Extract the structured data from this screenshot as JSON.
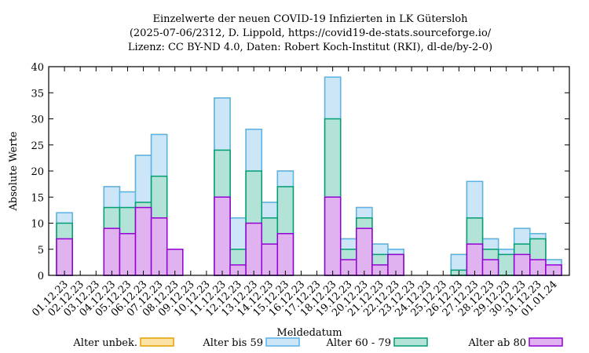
{
  "chart_data": {
    "type": "bar",
    "stacked": true,
    "title": [
      "Einzelwerte der neuen COVID-19 Infizierten in LK Gütersloh",
      "(2025-07-06/2312, D. Lippold, https://covid19-de-stats.sourceforge.io/",
      "Lizenz: CC BY-ND 4.0, Daten: Robert Koch-Institut (RKI), dl-de/by-2-0)"
    ],
    "xlabel": "Meldedatum",
    "ylabel": "Absolute Werte",
    "ylim": [
      0,
      40
    ],
    "yticks": [
      0,
      5,
      10,
      15,
      20,
      25,
      30,
      35,
      40
    ],
    "legend_position": "bottom",
    "categories": [
      "01.12.23",
      "02.12.23",
      "03.12.23",
      "04.12.23",
      "05.12.23",
      "06.12.23",
      "07.12.23",
      "08.12.23",
      "09.12.23",
      "10.12.23",
      "11.12.23",
      "12.12.23",
      "13.12.23",
      "14.12.23",
      "15.12.23",
      "16.12.23",
      "17.12.23",
      "18.12.23",
      "19.12.23",
      "20.12.23",
      "21.12.23",
      "22.12.23",
      "23.12.23",
      "24.12.23",
      "25.12.23",
      "26.12.23",
      "27.12.23",
      "28.12.23",
      "29.12.23",
      "30.12.23",
      "31.12.23",
      "01.01.24"
    ],
    "series": [
      {
        "name": "Alter ab 80",
        "fill": "#e0b3f0",
        "stroke": "#9400d3",
        "values": [
          7,
          0,
          0,
          9,
          8,
          13,
          11,
          5,
          0,
          0,
          15,
          2,
          10,
          6,
          8,
          0,
          0,
          15,
          3,
          9,
          2,
          4,
          0,
          0,
          0,
          0,
          6,
          3,
          0,
          4,
          3,
          2
        ]
      },
      {
        "name": "Alter 60 - 79",
        "fill": "#b3e2d6",
        "stroke": "#009e73",
        "values": [
          3,
          0,
          0,
          4,
          5,
          1,
          8,
          0,
          0,
          0,
          9,
          3,
          10,
          5,
          9,
          0,
          0,
          15,
          2,
          2,
          2,
          0,
          0,
          0,
          0,
          1,
          5,
          2,
          4,
          2,
          4,
          0
        ]
      },
      {
        "name": "Alter bis 59",
        "fill": "#cce6f8",
        "stroke": "#56b4e9",
        "values": [
          2,
          0,
          0,
          4,
          3,
          9,
          8,
          0,
          0,
          0,
          10,
          6,
          8,
          3,
          3,
          0,
          0,
          8,
          2,
          2,
          2,
          1,
          0,
          0,
          0,
          3,
          7,
          2,
          1,
          3,
          1,
          1
        ]
      },
      {
        "name": "Alter unbek.",
        "fill": "#fbe3a8",
        "stroke": "#e69f00",
        "values": [
          0,
          0,
          0,
          0,
          0,
          0,
          0,
          0,
          0,
          0,
          0,
          0,
          0,
          0,
          0,
          0,
          0,
          0,
          0,
          0,
          0,
          0,
          0,
          0,
          0,
          0,
          0,
          0,
          0,
          0,
          0,
          0
        ]
      }
    ],
    "legend_order": [
      "Alter unbek.",
      "Alter bis 59",
      "Alter 60 - 79",
      "Alter ab 80"
    ]
  }
}
